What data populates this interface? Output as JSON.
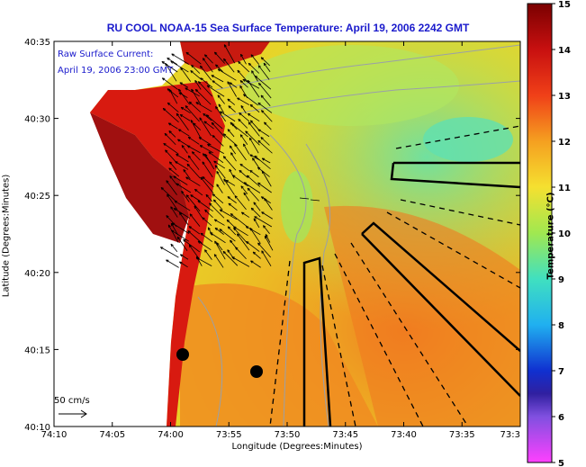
{
  "title": "RU COOL  NOAA-15  Sea Surface Temperature:  April 19, 2006 2242 GMT",
  "annotation": {
    "line1": "Raw Surface Current:",
    "line2": "April 19, 2006 23:00 GMT"
  },
  "scale_label": "50 cm/s",
  "axes": {
    "xlabel": "Longitude (Degrees:Minutes)",
    "ylabel": "Latitude (Degrees:Minutes)",
    "x_ticks": [
      "74:10",
      "74:05",
      "74:00",
      "73:55",
      "73:50",
      "73:45",
      "73:40",
      "73:35",
      "73:3"
    ],
    "y_ticks": [
      "40:35",
      "40:30",
      "40:25",
      "40:20",
      "40:15",
      "40:10"
    ]
  },
  "colorbar": {
    "label": "Temperature (°C)",
    "ticks": [
      "15",
      "14",
      "13",
      "12",
      "11",
      "10",
      "9",
      "8",
      "7",
      "6",
      "5"
    ],
    "min": 5,
    "max": 15
  },
  "colors": {
    "warm": "#f07018",
    "mid": "#f0d020",
    "cool": "#80e080",
    "land": "#ffffff",
    "coast_hot": "#b01010",
    "title": "#1a1acc"
  }
}
